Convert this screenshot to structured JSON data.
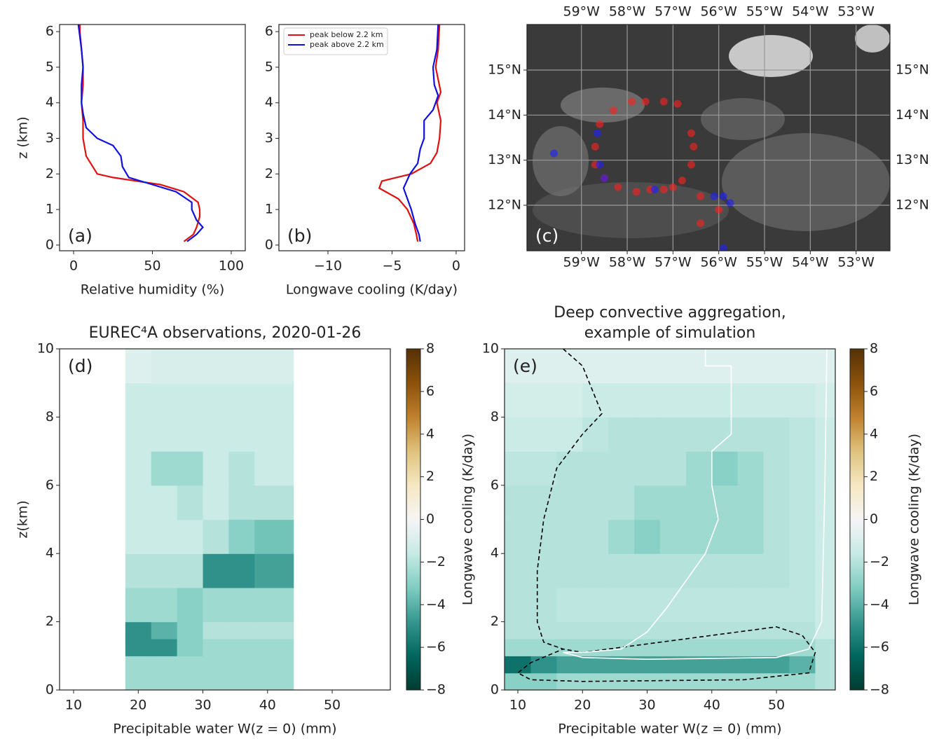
{
  "chart_data": [
    {
      "type": "line",
      "panel_label": "(a)",
      "xlabel": "Relative humidity (%)",
      "ylabel": "z (km)",
      "xlim": [
        -8.9,
        108.9
      ],
      "ylim": [
        -0.16,
        6.2
      ],
      "xticks": [
        0,
        50,
        100
      ],
      "yticks": [
        0,
        1,
        2,
        3,
        4,
        5,
        6
      ],
      "series": [
        {
          "color": "#e01010",
          "x": [
            70,
            76,
            78,
            80,
            80,
            79,
            70,
            55,
            25,
            15,
            8,
            6,
            6,
            5,
            6,
            6,
            5,
            4,
            4
          ],
          "y": [
            0.1,
            0.3,
            0.5,
            0.8,
            1.0,
            1.2,
            1.5,
            1.7,
            1.9,
            2.0,
            2.5,
            3.0,
            3.5,
            4.0,
            4.5,
            5.0,
            5.5,
            6.0,
            6.2
          ]
        },
        {
          "color": "#1010e0",
          "x": [
            72,
            78,
            82,
            78,
            75,
            75,
            65,
            50,
            35,
            31,
            30,
            25,
            15,
            8,
            6,
            5,
            5,
            6,
            5,
            3
          ],
          "y": [
            0.1,
            0.3,
            0.5,
            0.7,
            1.0,
            1.2,
            1.5,
            1.7,
            1.9,
            2.2,
            2.5,
            2.8,
            3.0,
            3.3,
            3.7,
            4.0,
            4.5,
            5.0,
            5.5,
            6.2
          ]
        }
      ]
    },
    {
      "type": "line",
      "panel_label": "(b)",
      "xlabel": "Longwave cooling (K/day)",
      "legend": "upper left",
      "xlim": [
        -13.83,
        0.66
      ],
      "ylim": [
        -0.16,
        6.2
      ],
      "xticks": [
        {
          "value": -10,
          "label": "−10"
        },
        {
          "value": -5,
          "label": "−5"
        },
        0
      ],
      "yticks": [
        0,
        1,
        2,
        3,
        4,
        5,
        6
      ],
      "series": [
        {
          "name": "peak below 2.2 km",
          "color": "#e01010",
          "x": [
            -3,
            -3.1,
            -3.3,
            -3.8,
            -4.5,
            -6,
            -5.8,
            -3.5,
            -2,
            -1.5,
            -1.3,
            -1.2,
            -1.5,
            -1.2,
            -1.6,
            -1.4,
            -1.3
          ],
          "y": [
            0.1,
            0.3,
            0.6,
            1.0,
            1.3,
            1.6,
            1.8,
            2.0,
            2.3,
            2.6,
            3.0,
            3.5,
            4.0,
            4.3,
            5.0,
            5.5,
            6.2
          ]
        },
        {
          "name": "peak above 2.2 km",
          "color": "#1010e0",
          "x": [
            -2.8,
            -2.9,
            -3.2,
            -3.5,
            -3.8,
            -4.1,
            -3.6,
            -3,
            -2.8,
            -2.5,
            -2.5,
            -1.8,
            -1.4,
            -1.7,
            -1.8,
            -1.5,
            -1.4
          ],
          "y": [
            0.1,
            0.3,
            0.6,
            1.0,
            1.3,
            1.6,
            2.0,
            2.3,
            2.7,
            3.0,
            3.5,
            3.8,
            4.2,
            4.5,
            5.0,
            5.5,
            6.2
          ]
        }
      ]
    },
    {
      "type": "scatter",
      "panel_label": "(c)",
      "ticks_both_sides": true,
      "xlim": [
        -60.19,
        -52.26
      ],
      "ylim": [
        10.99,
        16.01
      ],
      "xticks": [
        {
          "value": -59,
          "label": "59°W"
        },
        {
          "value": -58,
          "label": "58°W"
        },
        {
          "value": -57,
          "label": "57°W"
        },
        {
          "value": -56,
          "label": "56°W"
        },
        {
          "value": -55,
          "label": "55°W"
        },
        {
          "value": -54,
          "label": "54°W"
        },
        {
          "value": -53,
          "label": "53°W"
        }
      ],
      "yticks": [
        {
          "value": 12,
          "label": "12°N"
        },
        {
          "value": 13,
          "label": "13°N"
        },
        {
          "value": 14,
          "label": "14°N"
        },
        {
          "value": 15,
          "label": "15°N"
        }
      ],
      "series": [
        {
          "color": "#ff2020",
          "x": [
            -57.9,
            -57.6,
            -57.2,
            -56.9,
            -56.6,
            -56.55,
            -56.6,
            -56.8,
            -57.0,
            -57.2,
            -57.5,
            -57.8,
            -58.2,
            -58.5,
            -58.7,
            -58.7,
            -58.6,
            -58.3,
            -56.4,
            -56.0,
            -56.4
          ],
          "y": [
            14.3,
            14.3,
            14.3,
            14.25,
            13.6,
            13.3,
            12.9,
            12.55,
            12.4,
            12.35,
            12.35,
            12.3,
            12.4,
            12.6,
            12.9,
            13.3,
            13.8,
            14.1,
            12.2,
            11.9,
            11.6
          ]
        },
        {
          "color": "#2020ff",
          "x": [
            -58.65,
            -59.6,
            -58.6,
            -58.5,
            -57.4,
            -56.1,
            -55.9,
            -55.75,
            -55.9
          ],
          "y": [
            13.6,
            13.15,
            12.9,
            12.6,
            12.35,
            12.2,
            12.2,
            12.05,
            11.05
          ]
        }
      ]
    },
    {
      "type": "contour",
      "panel_label": "(d)",
      "title": "EUREC⁴A observations, 2020-01-26",
      "xlabel": "Precipitable water W(z = 0) (mm)",
      "ylabel": "z(km)",
      "xlim": [
        7.83,
        58.99
      ],
      "ylim": [
        0,
        10
      ],
      "xticks": [
        10,
        20,
        30,
        40,
        50
      ],
      "yticks": [
        0,
        2,
        4,
        6,
        8,
        10
      ],
      "clim": [
        -8,
        8
      ],
      "colormap": [
        "#003c30",
        "#01665e",
        "#35978f",
        "#80cdc1",
        "#c7eae5",
        "#f5f5f5",
        "#f6e8c3",
        "#dfc27d",
        "#bf812d",
        "#8c510a",
        "#543005"
      ],
      "cticks": [
        {
          "value": -8,
          "label": "−8"
        },
        {
          "value": -6,
          "label": "−6"
        },
        {
          "value": -4,
          "label": "−4"
        },
        {
          "value": -2,
          "label": "−2"
        },
        0,
        2,
        4,
        6,
        8
      ],
      "x_edges": [
        18,
        22,
        26,
        30,
        34,
        38,
        44
      ],
      "y_edges": [
        0,
        0.5,
        1,
        1.5,
        2,
        3,
        4,
        5,
        6,
        7,
        8,
        9,
        10
      ],
      "z": [
        [
          -2.5,
          -2.5,
          -2.5,
          -2.5,
          -2.5,
          -2.5
        ],
        [
          -2.5,
          -2.5,
          -2.5,
          -2.5,
          -2.5,
          -2.5
        ],
        [
          -5,
          -5,
          -3,
          -2.5,
          -2.5,
          -2.5
        ],
        [
          -5,
          -4,
          -3,
          -2,
          -2,
          -2
        ],
        [
          -2.5,
          -2.5,
          -3,
          -2.5,
          -2.5,
          -2.5
        ],
        [
          -2,
          -2,
          -2,
          -5,
          -5,
          -4.5
        ],
        [
          -1.5,
          -1.5,
          -1.5,
          -2,
          -3,
          -3.5
        ],
        [
          -1.5,
          -1.5,
          -2,
          -1.5,
          -2,
          -2
        ],
        [
          -1.5,
          -2.5,
          -2.5,
          -1.5,
          -2,
          -1.5
        ],
        [
          -1.5,
          -1.5,
          -1.5,
          -1.5,
          -1.5,
          -1.5
        ],
        [
          -1.5,
          -1.5,
          -1.5,
          -1.5,
          -1.5,
          -1.5
        ],
        [
          -0.8,
          -1,
          -1,
          -1,
          -1,
          -1
        ]
      ]
    },
    {
      "type": "contour",
      "panel_label": "(e)",
      "title": [
        "Deep convective aggregation,",
        "example of simulation"
      ],
      "xlabel": "Precipitable water W(z = 0) (mm)",
      "ylabel": "Longwave cooling (K/day)",
      "colorbar_label": "Longwave cooling (K/day)",
      "xlim": [
        7.94,
        59.1
      ],
      "ylim": [
        0,
        10
      ],
      "xticks": [
        10,
        20,
        30,
        40,
        50
      ],
      "yticks": [
        0,
        2,
        4,
        6,
        8,
        10
      ],
      "clim": [
        -8,
        8
      ],
      "colormap": [
        "#003c30",
        "#01665e",
        "#35978f",
        "#80cdc1",
        "#c7eae5",
        "#f5f5f5",
        "#f6e8c3",
        "#dfc27d",
        "#bf812d",
        "#8c510a",
        "#543005"
      ],
      "cticks": [
        {
          "value": -8,
          "label": "−8"
        },
        {
          "value": -6,
          "label": "−6"
        },
        {
          "value": -4,
          "label": "−4"
        },
        {
          "value": -2,
          "label": "−2"
        },
        0,
        2,
        4,
        6,
        8
      ],
      "x_edges": [
        8,
        12,
        16,
        20,
        24,
        28,
        32,
        36,
        40,
        44,
        48,
        52,
        56,
        59
      ],
      "y_edges": [
        0,
        0.5,
        1,
        1.5,
        2,
        3,
        4,
        5,
        6,
        7,
        8,
        9,
        10
      ],
      "z": [
        [
          -3,
          -3,
          -2.5,
          -2.5,
          -2.5,
          -2.5,
          -2.5,
          -2.5,
          -2.5,
          -2.5,
          -2.5,
          -2.5,
          -2
        ],
        [
          -6,
          -5,
          -4.5,
          -4.5,
          -4.5,
          -4.5,
          -4.5,
          -4.5,
          -4.5,
          -4.5,
          -4.5,
          -4,
          -2
        ],
        [
          -2.5,
          -2.5,
          -2.5,
          -2.5,
          -2.5,
          -2.5,
          -2.5,
          -2.5,
          -2.5,
          -2.5,
          -2.5,
          -2.5,
          -2
        ],
        [
          -2,
          -2,
          -2,
          -2,
          -2,
          -2,
          -2,
          -2,
          -2,
          -2,
          -2,
          -2,
          -1.5
        ],
        [
          -2,
          -2,
          -1.8,
          -1.8,
          -1.8,
          -1.8,
          -1.8,
          -1.8,
          -1.8,
          -1.8,
          -1.8,
          -1.8,
          -1.5
        ],
        [
          -2,
          -2,
          -2,
          -2,
          -2,
          -2,
          -2,
          -2,
          -2,
          -2,
          -2,
          -1.8,
          -1.5
        ],
        [
          -2,
          -2,
          -2,
          -2,
          -2.5,
          -3,
          -2.5,
          -2.5,
          -2.5,
          -2.5,
          -2,
          -1.8,
          -1.5
        ],
        [
          -2,
          -2,
          -2,
          -2,
          -2,
          -2.5,
          -2.5,
          -2.5,
          -2.5,
          -2.5,
          -2,
          -1.8,
          -1.5
        ],
        [
          -1.8,
          -1.8,
          -2,
          -2,
          -2,
          -2,
          -2,
          -2.5,
          -3,
          -2.5,
          -2,
          -1.8,
          -1.5
        ],
        [
          -1.5,
          -1.5,
          -1.5,
          -1.8,
          -2,
          -2,
          -2,
          -2,
          -2,
          -2,
          -2,
          -1.8,
          -1.5
        ],
        [
          -1.2,
          -1.2,
          -1.2,
          -1.5,
          -1.5,
          -1.5,
          -1.5,
          -1.5,
          -1.5,
          -1.5,
          -1.5,
          -1.5,
          -1.2
        ],
        [
          -0.8,
          -0.8,
          -0.8,
          -0.8,
          -0.8,
          -0.8,
          -0.8,
          -0.8,
          -0.8,
          -0.8,
          -0.8,
          -0.8,
          -0.8
        ]
      ],
      "contours": [
        {
          "color": "#000000",
          "dashed": true,
          "x": [
            17,
            20,
            23,
            20,
            16,
            14,
            13,
            13,
            14,
            17,
            20,
            28,
            40,
            50,
            54,
            56,
            55,
            45,
            20,
            12,
            10,
            12,
            17
          ],
          "y": [
            10,
            9.5,
            8.1,
            7.5,
            6.5,
            5,
            3.5,
            2,
            1.4,
            1.2,
            1.1,
            1.3,
            1.6,
            1.85,
            1.6,
            1.1,
            0.5,
            0.3,
            0.25,
            0.3,
            0.5,
            0.8,
            1.2
          ]
        },
        {
          "color": "#ffffff",
          "dashed": false,
          "x": [
            39,
            39,
            43,
            43,
            40,
            40,
            41,
            39,
            36,
            33,
            30,
            26,
            20,
            17,
            20,
            30,
            50,
            55,
            57,
            57.5,
            57.8
          ],
          "y": [
            10,
            9.5,
            9.5,
            7.5,
            7,
            6,
            5,
            4,
            3.2,
            2.4,
            1.7,
            1.2,
            1.1,
            1.1,
            0.95,
            0.9,
            0.95,
            1.2,
            2,
            6,
            10
          ]
        }
      ]
    }
  ]
}
